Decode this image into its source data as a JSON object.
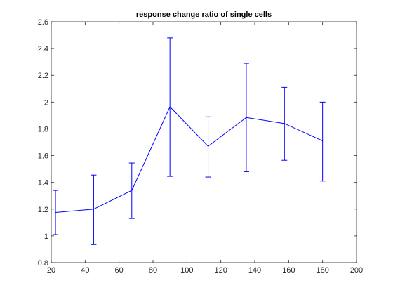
{
  "chart_data": {
    "type": "line",
    "title": "response change ratio of single cells",
    "xlabel": "",
    "ylabel": "",
    "xlim": [
      20,
      200
    ],
    "ylim": [
      0.8,
      2.6
    ],
    "x_ticks": [
      20,
      40,
      60,
      80,
      100,
      120,
      140,
      160,
      180,
      200
    ],
    "y_ticks": [
      0.8,
      1,
      1.2,
      1.4,
      1.6,
      1.8,
      2,
      2.2,
      2.4,
      2.6
    ],
    "x_tick_labels": [
      "20",
      "40",
      "60",
      "80",
      "100",
      "120",
      "140",
      "160",
      "180",
      "200"
    ],
    "y_tick_labels": [
      "0.8",
      "1",
      "1.2",
      "1.4",
      "1.6",
      "1.8",
      "2",
      "2.2",
      "2.4",
      "2.6"
    ],
    "grid": false,
    "series": [
      {
        "x": [
          22.5,
          45,
          67.5,
          90,
          112.5,
          135,
          157.5,
          180
        ],
        "values": [
          1.175,
          1.2,
          1.34,
          1.965,
          1.67,
          1.885,
          1.84,
          1.71
        ],
        "error_lower": [
          1.01,
          0.935,
          1.13,
          1.445,
          1.44,
          1.48,
          1.565,
          1.41
        ],
        "error_upper": [
          1.34,
          1.455,
          1.545,
          2.48,
          1.89,
          2.29,
          2.11,
          2.0
        ]
      }
    ],
    "colors": {
      "series": "#0000ff",
      "axes": "#262626"
    }
  }
}
